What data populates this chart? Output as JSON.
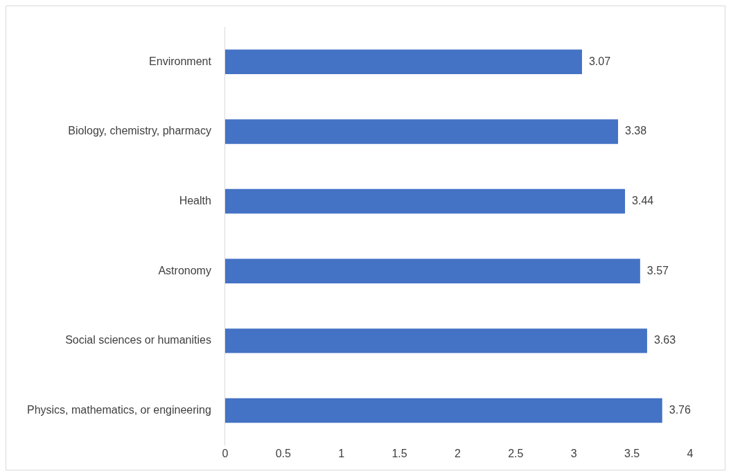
{
  "chart_data": {
    "type": "bar",
    "orientation": "horizontal",
    "categories": [
      "Environment",
      "Biology, chemistry, pharmacy",
      "Health",
      "Astronomy",
      "Social sciences or humanities",
      "Physics, mathematics, or engineering"
    ],
    "values": [
      3.07,
      3.38,
      3.44,
      3.57,
      3.63,
      3.76
    ],
    "color": "#4472c4",
    "xlim": [
      0,
      4
    ],
    "xticks": [
      0,
      0.5,
      1,
      1.5,
      2,
      2.5,
      3,
      3.5,
      4
    ],
    "grid": false,
    "legend": false,
    "data_labels": true
  }
}
